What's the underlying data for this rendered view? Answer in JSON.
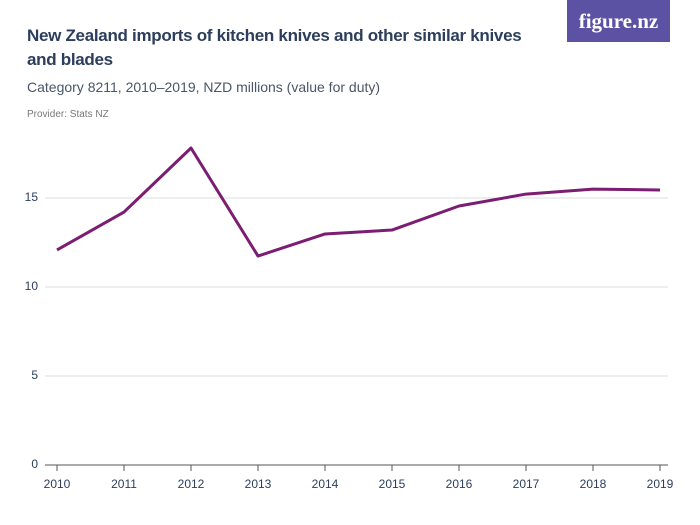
{
  "chart_data": {
    "type": "line",
    "title": "New Zealand imports of kitchen knives and other similar knives and blades",
    "subtitle": "Category 8211, 2010–2019, NZD millions (value for duty)",
    "provider": "Provider: Stats NZ",
    "logo": "figure.nz",
    "x": [
      2010,
      2011,
      2012,
      2013,
      2014,
      2015,
      2016,
      2017,
      2018,
      2019
    ],
    "xlim": [
      2010,
      2019
    ],
    "xticks": [
      2010,
      2011,
      2012,
      2013,
      2014,
      2015,
      2016,
      2017,
      2018,
      2019
    ],
    "series": [
      {
        "name": "Imports",
        "color": "#7b1d72",
        "values": [
          12.08,
          14.21,
          17.81,
          11.74,
          12.98,
          13.2,
          14.55,
          15.22,
          15.5,
          15.45
        ]
      }
    ],
    "ylim": [
      0,
      18
    ],
    "yticks": [
      0,
      5,
      10,
      15
    ],
    "grid": true
  }
}
